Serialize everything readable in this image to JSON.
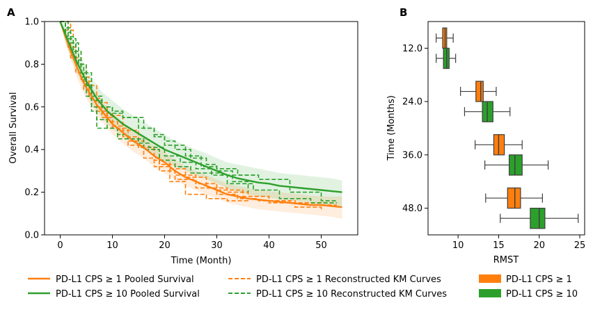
{
  "colors": {
    "orange": "#ff7f0e",
    "green": "#2ca02c",
    "box_orange": "#ff7f0e",
    "box_green": "#2ca02c"
  },
  "chart_data": [
    {
      "type": "line",
      "panel_label": "A",
      "title": "",
      "xlabel": "Time (Month)",
      "ylabel": "Overall Survival",
      "xlim": [
        -3,
        57
      ],
      "ylim": [
        0.0,
        1.0
      ],
      "xticks": [
        "0",
        "10",
        "20",
        "30",
        "40",
        "50"
      ],
      "yticks": [
        "0.0",
        "0.2",
        "0.4",
        "0.6",
        "0.8",
        "1.0"
      ],
      "pooled": [
        {
          "name": "PD-L1 CPS ≥ 1 Pooled Survival",
          "color": "#ff7f0e",
          "x": [
            0,
            1,
            2,
            3,
            4,
            5,
            6,
            7,
            8,
            9,
            10,
            12,
            14,
            16,
            18,
            20,
            22,
            24,
            26,
            28,
            30,
            32,
            34,
            36,
            38,
            40,
            42,
            44,
            46,
            48,
            50,
            52,
            54
          ],
          "y": [
            1.0,
            0.93,
            0.86,
            0.8,
            0.74,
            0.69,
            0.65,
            0.61,
            0.58,
            0.55,
            0.52,
            0.48,
            0.44,
            0.41,
            0.37,
            0.34,
            0.3,
            0.27,
            0.25,
            0.23,
            0.21,
            0.19,
            0.18,
            0.17,
            0.165,
            0.16,
            0.155,
            0.15,
            0.145,
            0.14,
            0.14,
            0.135,
            0.13
          ],
          "lower": [
            1.0,
            0.9,
            0.82,
            0.75,
            0.69,
            0.64,
            0.6,
            0.56,
            0.53,
            0.5,
            0.47,
            0.43,
            0.39,
            0.36,
            0.32,
            0.29,
            0.26,
            0.23,
            0.21,
            0.19,
            0.17,
            0.15,
            0.14,
            0.13,
            0.12,
            0.115,
            0.11,
            0.105,
            0.1,
            0.095,
            0.09,
            0.085,
            0.075
          ],
          "upper": [
            1.0,
            0.96,
            0.9,
            0.85,
            0.79,
            0.74,
            0.7,
            0.66,
            0.63,
            0.6,
            0.57,
            0.53,
            0.49,
            0.46,
            0.42,
            0.39,
            0.35,
            0.32,
            0.3,
            0.28,
            0.26,
            0.24,
            0.23,
            0.22,
            0.21,
            0.205,
            0.2,
            0.195,
            0.19,
            0.185,
            0.18,
            0.18,
            0.18
          ]
        },
        {
          "name": "PD-L1 CPS ≥ 10 Pooled Survival",
          "color": "#2ca02c",
          "x": [
            0,
            1,
            2,
            3,
            4,
            5,
            6,
            7,
            8,
            9,
            10,
            12,
            14,
            16,
            18,
            20,
            22,
            24,
            26,
            28,
            30,
            32,
            34,
            36,
            38,
            40,
            42,
            44,
            46,
            48,
            50,
            52,
            54
          ],
          "y": [
            1.0,
            0.94,
            0.88,
            0.82,
            0.77,
            0.72,
            0.68,
            0.64,
            0.61,
            0.58,
            0.56,
            0.52,
            0.49,
            0.46,
            0.43,
            0.4,
            0.38,
            0.36,
            0.34,
            0.32,
            0.3,
            0.28,
            0.265,
            0.255,
            0.245,
            0.24,
            0.23,
            0.225,
            0.22,
            0.215,
            0.21,
            0.205,
            0.2
          ],
          "lower": [
            1.0,
            0.9,
            0.84,
            0.77,
            0.72,
            0.67,
            0.62,
            0.58,
            0.55,
            0.52,
            0.5,
            0.46,
            0.43,
            0.4,
            0.37,
            0.34,
            0.32,
            0.3,
            0.28,
            0.26,
            0.24,
            0.22,
            0.2,
            0.19,
            0.18,
            0.175,
            0.165,
            0.16,
            0.155,
            0.15,
            0.145,
            0.14,
            0.135
          ],
          "upper": [
            1.0,
            0.98,
            0.93,
            0.88,
            0.83,
            0.78,
            0.74,
            0.7,
            0.67,
            0.65,
            0.63,
            0.59,
            0.56,
            0.53,
            0.5,
            0.47,
            0.44,
            0.42,
            0.4,
            0.38,
            0.36,
            0.34,
            0.33,
            0.32,
            0.31,
            0.3,
            0.29,
            0.285,
            0.28,
            0.275,
            0.27,
            0.265,
            0.255
          ]
        }
      ],
      "km_curves": [
        {
          "name": "PD-L1 CPS ≥ 1 Reconstructed KM Curves",
          "color": "#ff7f0e",
          "x": [
            0,
            1.5,
            3,
            4.5,
            6,
            8,
            10,
            13,
            16,
            19,
            22,
            26,
            30,
            35,
            40,
            45,
            50,
            53
          ],
          "y": [
            1.0,
            0.88,
            0.76,
            0.68,
            0.6,
            0.55,
            0.5,
            0.44,
            0.4,
            0.33,
            0.28,
            0.24,
            0.21,
            0.18,
            0.16,
            0.15,
            0.14,
            0.14
          ]
        },
        {
          "name": "",
          "color": "#ff7f0e",
          "x": [
            0,
            2,
            4,
            6,
            8,
            10,
            12,
            15,
            18,
            21,
            24,
            28,
            32,
            36,
            40,
            45,
            50
          ],
          "y": [
            1.0,
            0.83,
            0.72,
            0.64,
            0.57,
            0.51,
            0.46,
            0.41,
            0.35,
            0.31,
            0.27,
            0.22,
            0.2,
            0.18,
            0.15,
            0.13,
            0.12
          ]
        },
        {
          "name": "",
          "color": "#ff7f0e",
          "x": [
            0,
            1,
            2.5,
            4,
            5.5,
            7,
            9,
            11,
            13,
            16,
            19,
            22,
            26,
            30,
            34,
            38,
            44,
            52
          ],
          "y": [
            1.0,
            0.96,
            0.86,
            0.74,
            0.64,
            0.58,
            0.53,
            0.47,
            0.42,
            0.36,
            0.3,
            0.26,
            0.22,
            0.19,
            0.17,
            0.16,
            0.15,
            0.15
          ]
        },
        {
          "name": "",
          "color": "#ff7f0e",
          "x": [
            0,
            1.5,
            3,
            5,
            7,
            9,
            12,
            15,
            18,
            21,
            24,
            28,
            32,
            36
          ],
          "y": [
            1.0,
            0.9,
            0.8,
            0.7,
            0.62,
            0.56,
            0.49,
            0.41,
            0.32,
            0.25,
            0.19,
            0.17,
            0.16,
            0.15
          ]
        },
        {
          "name": "PD-L1 CPS ≥ 10 Reconstructed KM Curves",
          "color": "#2ca02c",
          "x": [
            0,
            1,
            2,
            3.5,
            5,
            6,
            7,
            8,
            10,
            11,
            13,
            16,
            19,
            22,
            25,
            28,
            31,
            38
          ],
          "y": [
            1.0,
            0.95,
            0.9,
            0.8,
            0.7,
            0.6,
            0.5,
            0.5,
            0.5,
            0.45,
            0.45,
            0.4,
            0.35,
            0.32,
            0.29,
            0.29,
            0.28,
            0.28
          ]
        },
        {
          "name": "",
          "color": "#2ca02c",
          "x": [
            0,
            1.5,
            3,
            4.5,
            6,
            8,
            10,
            12,
            15,
            18,
            20,
            24,
            27,
            30,
            33,
            36
          ],
          "y": [
            1.0,
            0.92,
            0.8,
            0.7,
            0.63,
            0.6,
            0.58,
            0.55,
            0.5,
            0.46,
            0.42,
            0.37,
            0.32,
            0.3,
            0.25,
            0.2
          ]
        },
        {
          "name": "",
          "color": "#2ca02c",
          "x": [
            0,
            1,
            2.5,
            4,
            6,
            8,
            10,
            12,
            14,
            16,
            18,
            20,
            22,
            25,
            28,
            30,
            34,
            38,
            44,
            50,
            53
          ],
          "y": [
            1.0,
            0.93,
            0.86,
            0.76,
            0.65,
            0.6,
            0.57,
            0.55,
            0.55,
            0.5,
            0.47,
            0.44,
            0.4,
            0.36,
            0.33,
            0.31,
            0.28,
            0.26,
            0.2,
            0.16,
            0.16
          ]
        },
        {
          "name": "",
          "color": "#2ca02c",
          "x": [
            0,
            1,
            2,
            3,
            4,
            5,
            6,
            7,
            9,
            11,
            13,
            15,
            17,
            20,
            23,
            26,
            29,
            32,
            37,
            42,
            48,
            53
          ],
          "y": [
            1.0,
            0.97,
            0.9,
            0.82,
            0.74,
            0.65,
            0.58,
            0.54,
            0.5,
            0.47,
            0.45,
            0.43,
            0.41,
            0.37,
            0.34,
            0.31,
            0.28,
            0.24,
            0.21,
            0.17,
            0.15,
            0.15
          ]
        }
      ]
    },
    {
      "type": "boxplot",
      "panel_label": "B",
      "title": "",
      "xlabel": "RMST",
      "ylabel": "Time (Months)",
      "xlim": [
        6.3,
        25.6
      ],
      "xticks": [
        "10",
        "15",
        "20",
        "25"
      ],
      "categories": [
        "12.0",
        "24.0",
        "36.0",
        "48.0"
      ],
      "series": [
        {
          "name": "PD-L1 CPS ≥ 1",
          "color": "#ff7f0e",
          "boxes": [
            {
              "whisker_low": 7.3,
              "q1": 8.1,
              "median": 8.4,
              "q3": 8.6,
              "whisker_high": 9.4
            },
            {
              "whisker_low": 10.3,
              "q1": 12.2,
              "median": 12.8,
              "q3": 13.1,
              "whisker_high": 14.7
            },
            {
              "whisker_low": 12.1,
              "q1": 14.4,
              "median": 15.0,
              "q3": 15.7,
              "whisker_high": 17.9
            },
            {
              "whisker_low": 13.4,
              "q1": 16.1,
              "median": 17.0,
              "q3": 17.7,
              "whisker_high": 20.4
            }
          ]
        },
        {
          "name": "PD-L1 CPS ≥ 10",
          "color": "#2ca02c",
          "boxes": [
            {
              "whisker_low": 7.3,
              "q1": 8.2,
              "median": 8.6,
              "q3": 8.9,
              "whisker_high": 9.7
            },
            {
              "whisker_low": 10.8,
              "q1": 13.0,
              "median": 13.6,
              "q3": 14.3,
              "whisker_high": 16.4
            },
            {
              "whisker_low": 13.3,
              "q1": 16.3,
              "median": 17.0,
              "q3": 17.9,
              "whisker_high": 21.1
            },
            {
              "whisker_low": 15.2,
              "q1": 18.9,
              "median": 20.0,
              "q3": 20.7,
              "whisker_high": 24.8
            }
          ]
        }
      ]
    }
  ],
  "legend": {
    "items": [
      {
        "label": "PD-L1 CPS ≥ 1 Pooled Survival",
        "style": "solid",
        "color": "#ff7f0e"
      },
      {
        "label": "PD-L1 CPS ≥ 10 Pooled Survival",
        "style": "solid",
        "color": "#2ca02c"
      },
      {
        "label": "PD-L1 CPS ≥ 1 Reconstructed KM Curves",
        "style": "dashed",
        "color": "#ff7f0e"
      },
      {
        "label": "PD-L1 CPS ≥ 10 Reconstructed KM Curves",
        "style": "dashed",
        "color": "#2ca02c"
      },
      {
        "label": "PD-L1 CPS ≥ 1",
        "style": "patch",
        "color": "#ff7f0e"
      },
      {
        "label": "PD-L1 CPS ≥ 10",
        "style": "patch",
        "color": "#2ca02c"
      }
    ]
  }
}
